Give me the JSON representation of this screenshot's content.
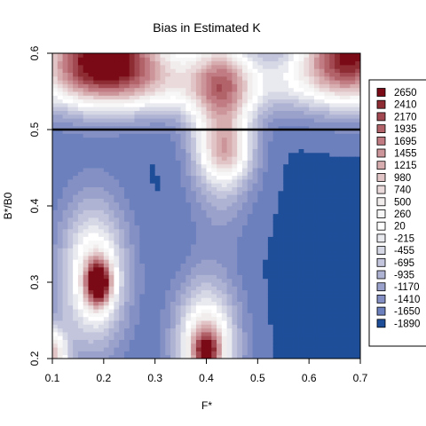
{
  "chart_data": {
    "type": "heatmap",
    "title": "Bias in Estimated K",
    "xlabel": "F*",
    "ylabel": "B*/B0",
    "xlim": [
      0.1,
      0.7
    ],
    "ylim": [
      0.2,
      0.6
    ],
    "x_ticks": [
      "0.1",
      "0.2",
      "0.3",
      "0.4",
      "0.5",
      "0.6",
      "0.7"
    ],
    "y_ticks": [
      "0.2",
      "0.3",
      "0.4",
      "0.5",
      "0.6"
    ],
    "reference_line": {
      "y": 0.5,
      "color": "#000000"
    },
    "legend": {
      "placement": "right",
      "levels": [
        {
          "label": "2650",
          "color": "#7a0a16"
        },
        {
          "label": "2410",
          "color": "#8e2c33"
        },
        {
          "label": "2170",
          "color": "#a14850"
        },
        {
          "label": "1935",
          "color": "#b2636a"
        },
        {
          "label": "1695",
          "color": "#c07c82"
        },
        {
          "label": "1455",
          "color": "#cc9599"
        },
        {
          "label": "1215",
          "color": "#d7adb0"
        },
        {
          "label": "980",
          "color": "#e1c4c6"
        },
        {
          "label": "740",
          "color": "#eadadb"
        },
        {
          "label": "500",
          "color": "#f2eded"
        },
        {
          "label": "260",
          "color": "#f7f7f7"
        },
        {
          "label": "20",
          "color": "#ffffff"
        },
        {
          "label": "-215",
          "color": "#e9eaf0"
        },
        {
          "label": "-455",
          "color": "#d6d8e6"
        },
        {
          "label": "-695",
          "color": "#c2c5dc"
        },
        {
          "label": "-935",
          "color": "#aeb3d3"
        },
        {
          "label": "-1170",
          "color": "#9aa2cb"
        },
        {
          "label": "-1410",
          "color": "#8490c4"
        },
        {
          "label": "-1650",
          "color": "#6d80be"
        },
        {
          "label": "-1890",
          "color": "#1f4e99"
        }
      ]
    }
  }
}
